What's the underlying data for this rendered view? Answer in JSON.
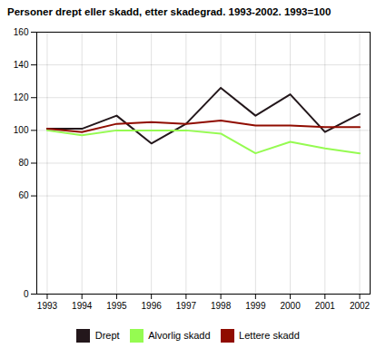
{
  "chart_data": {
    "type": "line",
    "title": "Personer drept eller skadd, etter skadegrad. 1993-2002. 1993=100",
    "x": [
      1993,
      1994,
      1995,
      1996,
      1997,
      1998,
      1999,
      2000,
      2001,
      2002
    ],
    "series": [
      {
        "name": "Drept",
        "values": [
          101,
          101,
          109,
          92,
          104,
          126,
          109,
          122,
          99,
          110
        ]
      },
      {
        "name": "Alvorlig skadd",
        "values": [
          100,
          97,
          100,
          100,
          100,
          98,
          86,
          93,
          89,
          86
        ]
      },
      {
        "name": "Lettere skadd",
        "values": [
          101,
          99,
          104,
          105,
          104,
          106,
          103,
          103,
          102,
          102
        ]
      }
    ],
    "xlim": [
      1992.7,
      2002.3
    ],
    "xticks": [
      1993,
      1994,
      1995,
      1996,
      1997,
      1998,
      1999,
      2000,
      2001,
      2002
    ],
    "ylim": [
      0,
      160
    ],
    "yticks": [
      0,
      60,
      80,
      100,
      120,
      140,
      160
    ],
    "grid": true,
    "legend": "bottom"
  }
}
